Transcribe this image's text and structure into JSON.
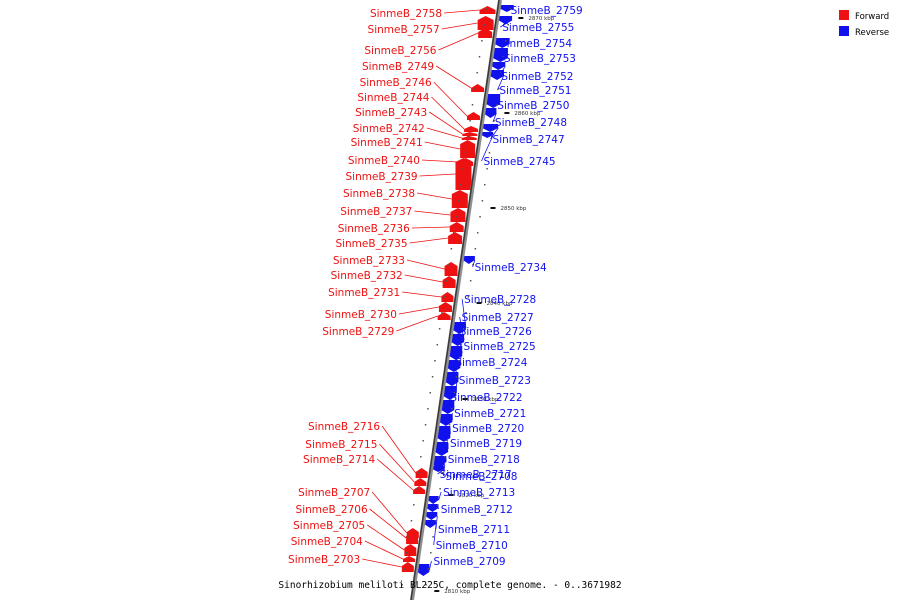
{
  "caption": "Sinorhizobium meliloti BL225C, complete genome. - 0..3671982",
  "legend": [
    {
      "label": "Forward",
      "color": "#ee1111"
    },
    {
      "label": "Reverse",
      "color": "#1111ee"
    }
  ],
  "scale_labels": [
    "2870 kbp",
    "2860 kbp",
    "2850 kbp",
    "2840 kbp",
    "2830 kbp",
    "2820 kbp",
    "2810 kbp"
  ],
  "genes": [
    {
      "label": "SinmeB_2759",
      "strand": "reverse"
    },
    {
      "label": "SinmeB_2758",
      "strand": "forward"
    },
    {
      "label": "SinmeB_2757",
      "strand": "forward"
    },
    {
      "label": "SinmeB_2755",
      "strand": "reverse"
    },
    {
      "label": "SinmeB_2756",
      "strand": "forward"
    },
    {
      "label": "SinmeB_2754",
      "strand": "reverse"
    },
    {
      "label": "SinmeB_2753",
      "strand": "reverse"
    },
    {
      "label": "SinmeB_2749",
      "strand": "forward"
    },
    {
      "label": "SinmeB_2752",
      "strand": "reverse"
    },
    {
      "label": "SinmeB_2746",
      "strand": "forward"
    },
    {
      "label": "SinmeB_2751",
      "strand": "reverse"
    },
    {
      "label": "SinmeB_2744",
      "strand": "forward"
    },
    {
      "label": "SinmeB_2750",
      "strand": "reverse"
    },
    {
      "label": "SinmeB_2743",
      "strand": "forward"
    },
    {
      "label": "SinmeB_2748",
      "strand": "reverse"
    },
    {
      "label": "SinmeB_2742",
      "strand": "forward"
    },
    {
      "label": "SinmeB_2747",
      "strand": "reverse"
    },
    {
      "label": "SinmeB_2741",
      "strand": "forward"
    },
    {
      "label": "SinmeB_2740",
      "strand": "forward"
    },
    {
      "label": "SinmeB_2745",
      "strand": "reverse"
    },
    {
      "label": "SinmeB_2739",
      "strand": "forward"
    },
    {
      "label": "SinmeB_2738",
      "strand": "forward"
    },
    {
      "label": "SinmeB_2737",
      "strand": "forward"
    },
    {
      "label": "SinmeB_2736",
      "strand": "forward"
    },
    {
      "label": "SinmeB_2735",
      "strand": "forward"
    },
    {
      "label": "SinmeB_2733",
      "strand": "forward"
    },
    {
      "label": "SinmeB_2734",
      "strand": "reverse"
    },
    {
      "label": "SinmeB_2732",
      "strand": "forward"
    },
    {
      "label": "SinmeB_2731",
      "strand": "forward"
    },
    {
      "label": "SinmeB_2728",
      "strand": "reverse"
    },
    {
      "label": "SinmeB_2730",
      "strand": "forward"
    },
    {
      "label": "SinmeB_2727",
      "strand": "reverse"
    },
    {
      "label": "SinmeB_2729",
      "strand": "forward"
    },
    {
      "label": "SinmeB_2726",
      "strand": "reverse"
    },
    {
      "label": "SinmeB_2725",
      "strand": "reverse"
    },
    {
      "label": "SinmeB_2724",
      "strand": "reverse"
    },
    {
      "label": "SinmeB_2723",
      "strand": "reverse"
    },
    {
      "label": "SinmeB_2722",
      "strand": "reverse"
    },
    {
      "label": "SinmeB_2721",
      "strand": "reverse"
    },
    {
      "label": "SinmeB_2716",
      "strand": "forward"
    },
    {
      "label": "SinmeB_2720",
      "strand": "reverse"
    },
    {
      "label": "SinmeB_2715",
      "strand": "forward"
    },
    {
      "label": "SinmeB_2719",
      "strand": "reverse"
    },
    {
      "label": "SinmeB_2714",
      "strand": "forward"
    },
    {
      "label": "SinmeB_2718",
      "strand": "reverse"
    },
    {
      "label": "SinmeB_2717",
      "strand": "reverse"
    },
    {
      "label": "SinmeB_2708",
      "strand": "reverse"
    },
    {
      "label": "SinmeB_2707",
      "strand": "forward"
    },
    {
      "label": "SinmeB_2713",
      "strand": "reverse"
    },
    {
      "label": "SinmeB_2706",
      "strand": "forward"
    },
    {
      "label": "SinmeB_2712",
      "strand": "reverse"
    },
    {
      "label": "SinmeB_2705",
      "strand": "forward"
    },
    {
      "label": "SinmeB_2711",
      "strand": "reverse"
    },
    {
      "label": "SinmeB_2704",
      "strand": "forward"
    },
    {
      "label": "SinmeB_2710",
      "strand": "reverse"
    },
    {
      "label": "SinmeB_2703",
      "strand": "forward"
    },
    {
      "label": "SinmeB_2709",
      "strand": "reverse"
    }
  ]
}
